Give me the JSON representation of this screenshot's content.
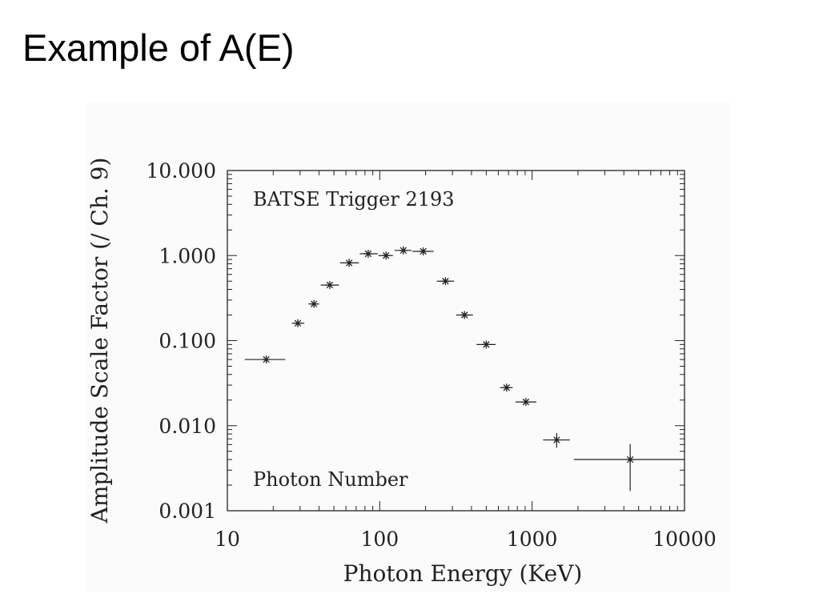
{
  "slide": {
    "title": "Example of A(E)"
  },
  "colors": {
    "background": "#ffffff",
    "text": "#000000",
    "figure_background": "#fbfbfb",
    "plot_ink": "#222222"
  },
  "chart_data": {
    "type": "scatter",
    "title": "",
    "xlabel": "Photon Energy (KeV)",
    "ylabel": "Amplitude Scale Factor (/ Ch. 9)",
    "xscale": "log",
    "yscale": "log",
    "xlim": [
      10,
      10000
    ],
    "ylim": [
      0.001,
      10
    ],
    "x_ticks": [
      10,
      100,
      1000,
      10000
    ],
    "x_tick_labels": [
      "10",
      "100",
      "1000",
      "10000"
    ],
    "y_ticks": [
      0.001,
      0.01,
      0.1,
      1,
      10
    ],
    "y_tick_labels": [
      "0.001",
      "0.010",
      "0.100",
      "1.000",
      "10.000"
    ],
    "grid": false,
    "marker": "asterisk",
    "annotations": [
      "BATSE Trigger 2193",
      "Photon Number"
    ],
    "series": [
      {
        "points": [
          {
            "x": 18,
            "y": 0.06,
            "xlo": 13,
            "xhi": 24,
            "ylo": 0.06,
            "yhi": 0.06
          },
          {
            "x": 29,
            "y": 0.16,
            "xlo": 26.5,
            "xhi": 32,
            "ylo": 0.16,
            "yhi": 0.16
          },
          {
            "x": 37,
            "y": 0.27,
            "xlo": 34,
            "xhi": 40,
            "ylo": 0.27,
            "yhi": 0.27
          },
          {
            "x": 47,
            "y": 0.45,
            "xlo": 41,
            "xhi": 54,
            "ylo": 0.45,
            "yhi": 0.45
          },
          {
            "x": 63,
            "y": 0.82,
            "xlo": 55,
            "xhi": 73,
            "ylo": 0.82,
            "yhi": 0.82
          },
          {
            "x": 84,
            "y": 1.05,
            "xlo": 74,
            "xhi": 97,
            "ylo": 1.05,
            "yhi": 1.05
          },
          {
            "x": 110,
            "y": 1.0,
            "xlo": 98,
            "xhi": 122,
            "ylo": 1.0,
            "yhi": 1.0
          },
          {
            "x": 143,
            "y": 1.15,
            "xlo": 125,
            "xhi": 162,
            "ylo": 1.15,
            "yhi": 1.15
          },
          {
            "x": 193,
            "y": 1.12,
            "xlo": 164,
            "xhi": 226,
            "ylo": 1.12,
            "yhi": 1.12
          },
          {
            "x": 270,
            "y": 0.5,
            "xlo": 237,
            "xhi": 307,
            "ylo": 0.5,
            "yhi": 0.5
          },
          {
            "x": 360,
            "y": 0.2,
            "xlo": 317,
            "xhi": 409,
            "ylo": 0.2,
            "yhi": 0.2
          },
          {
            "x": 500,
            "y": 0.09,
            "xlo": 432,
            "xhi": 576,
            "ylo": 0.09,
            "yhi": 0.09
          },
          {
            "x": 680,
            "y": 0.028,
            "xlo": 616,
            "xhi": 746,
            "ylo": 0.028,
            "yhi": 0.028
          },
          {
            "x": 910,
            "y": 0.019,
            "xlo": 778,
            "xhi": 1065,
            "ylo": 0.019,
            "yhi": 0.019
          },
          {
            "x": 1450,
            "y": 0.0068,
            "xlo": 1180,
            "xhi": 1770,
            "ylo": 0.0055,
            "yhi": 0.0082
          },
          {
            "x": 4400,
            "y": 0.004,
            "xlo": 1880,
            "xhi": 10000,
            "ylo": 0.0017,
            "yhi": 0.0061
          }
        ]
      }
    ]
  }
}
